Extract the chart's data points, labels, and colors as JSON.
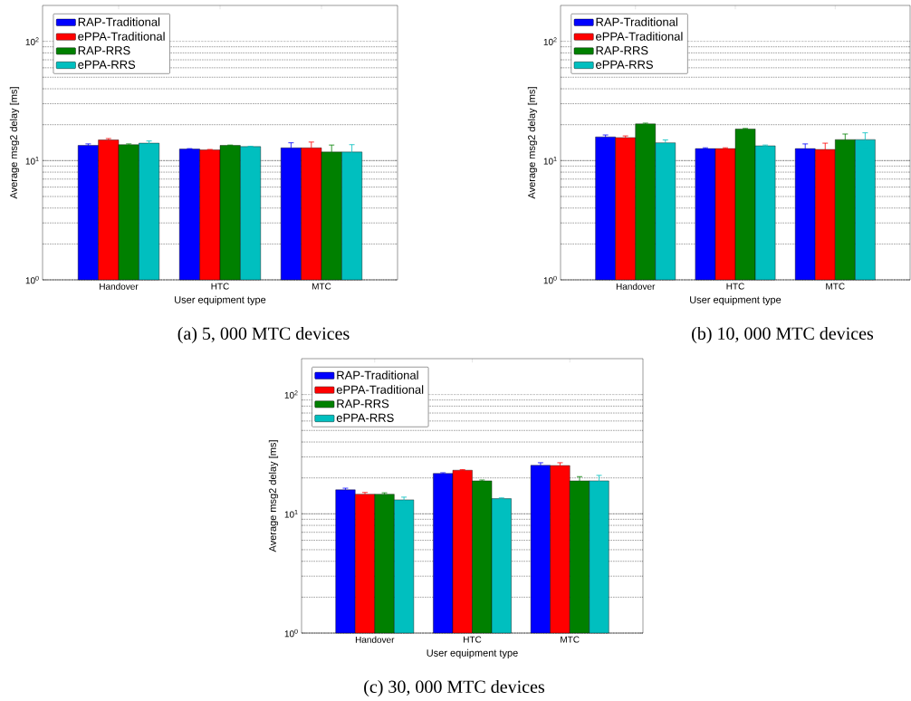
{
  "chart_data": [
    {
      "type": "bar",
      "categories": [
        "Handover",
        "HTC",
        "MTC"
      ],
      "xlabel": "User equipment type",
      "ylabel": "Average msg2 delay [ms]",
      "log": true,
      "ylim": [
        1,
        200
      ],
      "yticks": [
        {
          "value": 1,
          "label": "10$^{0}$"
        },
        {
          "value": 10,
          "label": "10$^{1}$"
        },
        {
          "value": 100,
          "label": "10$^{2}$"
        }
      ],
      "grid": "y",
      "legend": "top left",
      "annotations": [
        "(a) 5, 000 MTC devices"
      ],
      "series": [
        {
          "name": "RAP-Traditional",
          "color": "#0000ff",
          "values": [
            13.4,
            12.5,
            12.8
          ],
          "errors": [
            0.4,
            0.1,
            1.3
          ]
        },
        {
          "name": "ePPA-Traditional",
          "color": "#ff0000",
          "values": [
            14.9,
            12.3,
            12.8
          ],
          "errors": [
            0.4,
            0.1,
            1.5
          ]
        },
        {
          "name": "RAP-RRS",
          "color": "#008000",
          "values": [
            13.6,
            13.4,
            11.8
          ],
          "errors": [
            0.2,
            0.1,
            1.7
          ]
        },
        {
          "name": "ePPA-RRS",
          "color": "#00bfbf",
          "values": [
            14.0,
            13.1,
            11.8
          ],
          "errors": [
            0.6,
            0.1,
            1.8
          ]
        }
      ]
    },
    {
      "type": "bar",
      "categories": [
        "Handover",
        "HTC",
        "MTC"
      ],
      "xlabel": "User equipment type",
      "ylabel": "Average msg2 delay [ms]",
      "log": true,
      "ylim": [
        1,
        200
      ],
      "yticks": [
        {
          "value": 1,
          "label": "10$^{0}$"
        },
        {
          "value": 10,
          "label": "10$^{1}$"
        },
        {
          "value": 100,
          "label": "10$^{2}$"
        }
      ],
      "grid": "y",
      "legend": "top left",
      "annotations": [
        "(b) 10, 000 MTC devices"
      ],
      "series": [
        {
          "name": "RAP-Traditional",
          "color": "#0000ff",
          "values": [
            15.8,
            12.6,
            12.6
          ],
          "errors": [
            0.6,
            0.2,
            1.2
          ]
        },
        {
          "name": "ePPA-Traditional",
          "color": "#ff0000",
          "values": [
            15.6,
            12.6,
            12.4
          ],
          "errors": [
            0.5,
            0.2,
            1.6
          ]
        },
        {
          "name": "RAP-RRS",
          "color": "#008000",
          "values": [
            20.3,
            18.4,
            15.0
          ],
          "errors": [
            0.3,
            0.2,
            1.7
          ]
        },
        {
          "name": "ePPA-RRS",
          "color": "#00bfbf",
          "values": [
            14.1,
            13.3,
            15.0
          ],
          "errors": [
            0.8,
            0.2,
            2.1
          ]
        }
      ]
    },
    {
      "type": "bar",
      "categories": [
        "Handover",
        "HTC",
        "MTC"
      ],
      "xlabel": "User equipment type",
      "ylabel": "Average msg2 delay [ms]",
      "log": true,
      "ylim": [
        1,
        200
      ],
      "yticks": [
        {
          "value": 1,
          "label": "10$^{0}$"
        },
        {
          "value": 10,
          "label": "10$^{1}$"
        },
        {
          "value": 100,
          "label": "10$^{2}$"
        }
      ],
      "grid": "y",
      "legend": "top left",
      "annotations": [
        "(c) 30, 000 MTC devices"
      ],
      "series": [
        {
          "name": "RAP-Traditional",
          "color": "#0000ff",
          "values": [
            15.9,
            21.8,
            25.5
          ],
          "errors": [
            0.5,
            0.3,
            1.3
          ]
        },
        {
          "name": "ePPA-Traditional",
          "color": "#ff0000",
          "values": [
            14.6,
            23.2,
            25.4
          ],
          "errors": [
            0.5,
            0.3,
            1.4
          ]
        },
        {
          "name": "RAP-RRS",
          "color": "#008000",
          "values": [
            14.6,
            18.9,
            18.9
          ],
          "errors": [
            0.4,
            0.3,
            1.6
          ]
        },
        {
          "name": "ePPA-RRS",
          "color": "#00bfbf",
          "values": [
            13.1,
            13.4,
            18.9
          ],
          "errors": [
            0.7,
            0.2,
            2.1
          ]
        }
      ]
    }
  ]
}
